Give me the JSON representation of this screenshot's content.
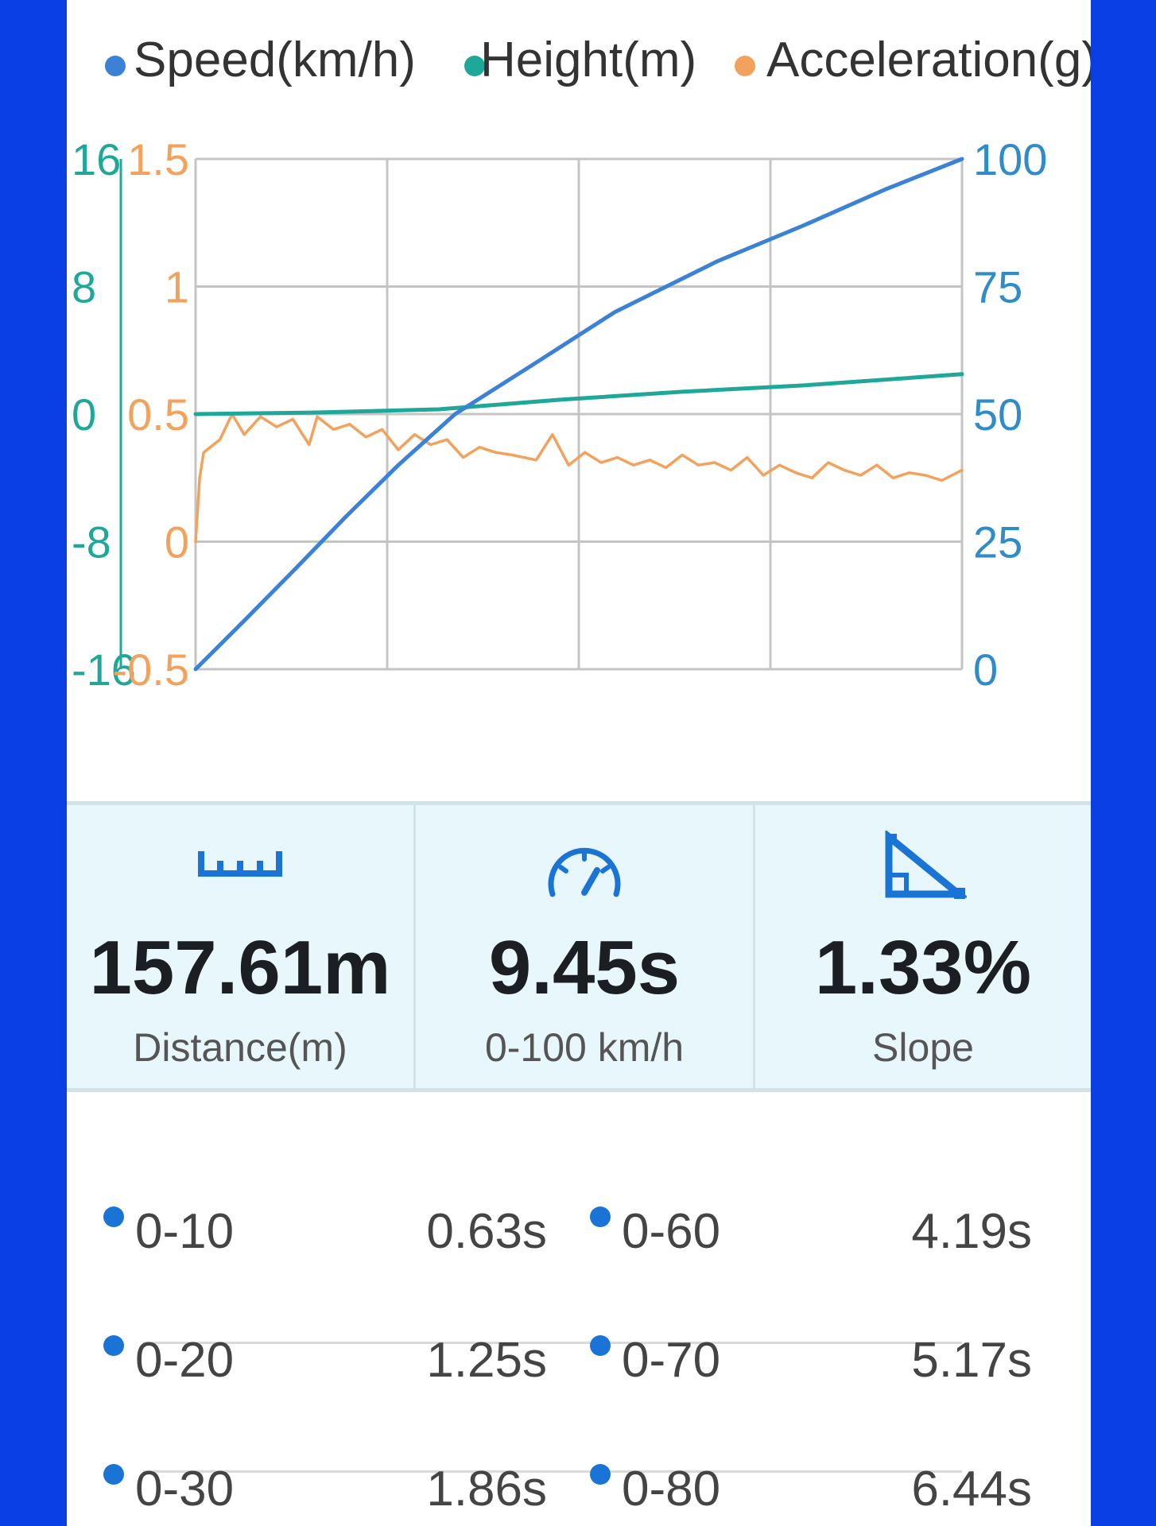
{
  "legend": [
    {
      "label": "Speed(km/h)",
      "color": "#3b82d6"
    },
    {
      "label": "Height(m)",
      "color": "#1fa89a"
    },
    {
      "label": "Acceleration(g)",
      "color": "#f2a25c"
    }
  ],
  "chart_data": {
    "type": "line",
    "xlabel": "",
    "axes": {
      "height_left": {
        "ticks": [
          "16",
          "8",
          "0",
          "-8",
          "-16"
        ],
        "ylim": [
          -16,
          16
        ],
        "color": "#1fa89a"
      },
      "acceleration_left": {
        "ticks": [
          "1.5",
          "1",
          "0.5",
          "0",
          "-0.5"
        ],
        "ylim": [
          -0.5,
          1.5
        ],
        "color": "#f2a25c"
      },
      "speed_right": {
        "ticks": [
          "100",
          "75",
          "50",
          "25",
          "0"
        ],
        "ylim": [
          0,
          100
        ],
        "color": "#2f8cc9"
      }
    },
    "grid": true,
    "x_range": [
      0,
      9.45
    ],
    "series": [
      {
        "name": "Speed(km/h)",
        "axis": "speed_right",
        "color": "#3b82d6",
        "x": [
          0,
          0.63,
          1.25,
          1.86,
          2.5,
          3.2,
          4.19,
          5.17,
          6.44,
          7.5,
          8.5,
          9.45
        ],
        "y": [
          0,
          10,
          20,
          30,
          40,
          50,
          60,
          70,
          80,
          87,
          94,
          100
        ]
      },
      {
        "name": "Height(m)",
        "axis": "height_left",
        "color": "#1fa89a",
        "x": [
          0,
          1.5,
          3.0,
          4.5,
          6.0,
          7.5,
          9.45
        ],
        "y": [
          0.0,
          0.1,
          0.3,
          0.9,
          1.4,
          1.8,
          2.5
        ]
      },
      {
        "name": "Acceleration(g)",
        "axis": "acceleration_left",
        "color": "#f2a25c",
        "x": [
          0,
          0.05,
          0.1,
          0.3,
          0.45,
          0.6,
          0.8,
          1.0,
          1.2,
          1.4,
          1.5,
          1.7,
          1.9,
          2.1,
          2.3,
          2.5,
          2.7,
          2.9,
          3.1,
          3.3,
          3.5,
          3.7,
          3.9,
          4.2,
          4.4,
          4.6,
          4.8,
          5.0,
          5.2,
          5.4,
          5.6,
          5.8,
          6.0,
          6.2,
          6.4,
          6.6,
          6.8,
          7.0,
          7.2,
          7.4,
          7.6,
          7.8,
          8.0,
          8.2,
          8.4,
          8.6,
          8.8,
          9.0,
          9.2,
          9.45
        ],
        "y": [
          0.0,
          0.25,
          0.35,
          0.4,
          0.5,
          0.42,
          0.49,
          0.45,
          0.48,
          0.38,
          0.49,
          0.44,
          0.46,
          0.41,
          0.44,
          0.36,
          0.42,
          0.38,
          0.4,
          0.33,
          0.37,
          0.35,
          0.34,
          0.32,
          0.42,
          0.3,
          0.35,
          0.31,
          0.33,
          0.3,
          0.32,
          0.29,
          0.34,
          0.3,
          0.31,
          0.28,
          0.33,
          0.26,
          0.3,
          0.27,
          0.25,
          0.31,
          0.28,
          0.26,
          0.3,
          0.25,
          0.27,
          0.26,
          0.24,
          0.28
        ]
      }
    ]
  },
  "stats": [
    {
      "icon": "ruler-icon",
      "value": "157.61m",
      "caption": "Distance(m)"
    },
    {
      "icon": "speedometer-icon",
      "value": "9.45s",
      "caption": "0-100 km/h"
    },
    {
      "icon": "slope-icon",
      "value": "1.33%",
      "caption": "Slope"
    }
  ],
  "accent_color": "#1a74d6",
  "splits": [
    {
      "left": {
        "range": "0-10",
        "time": "0.63s"
      },
      "right": {
        "range": "0-60",
        "time": "4.19s"
      }
    },
    {
      "left": {
        "range": "0-20",
        "time": "1.25s"
      },
      "right": {
        "range": "0-70",
        "time": "5.17s"
      }
    },
    {
      "left": {
        "range": "0-30",
        "time": "1.86s"
      },
      "right": {
        "range": "0-80",
        "time": "6.44s"
      }
    }
  ]
}
